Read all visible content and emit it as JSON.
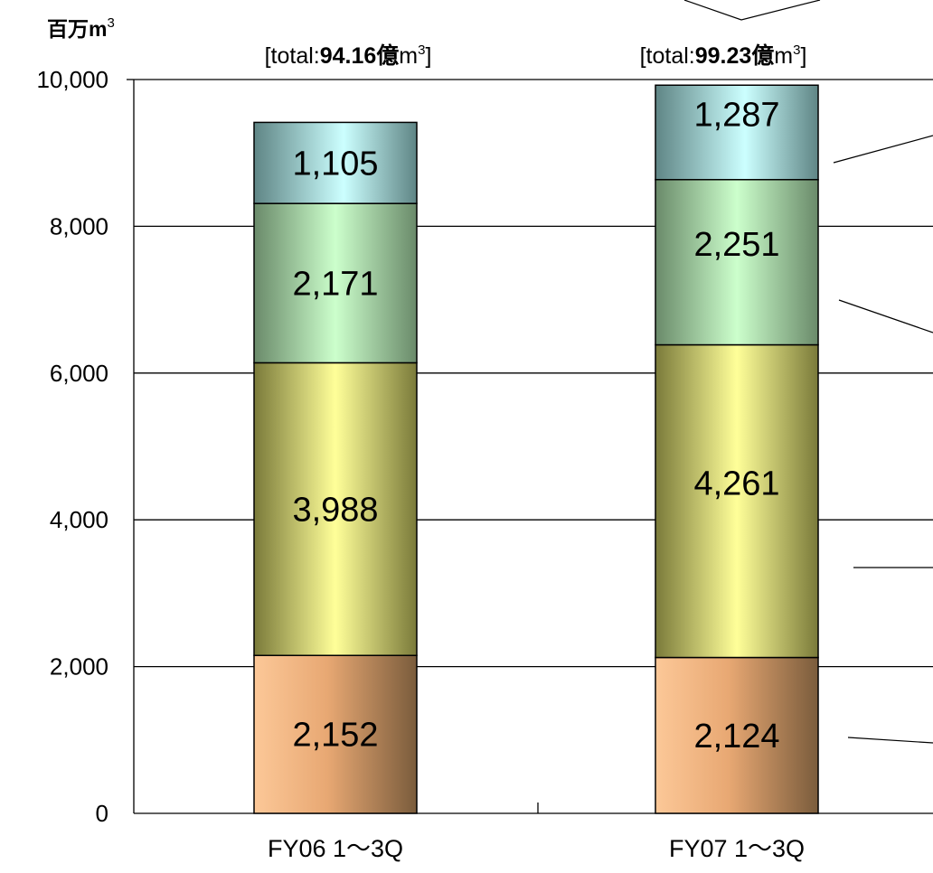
{
  "chart_data": {
    "type": "bar",
    "stacked": true,
    "title": "",
    "xlabel": "",
    "ylabel": "百万m³",
    "ylabel_parts": {
      "text": "百万m",
      "sup": "3"
    },
    "ylim": [
      0,
      10000
    ],
    "yticks": [
      0,
      2000,
      4000,
      6000,
      8000,
      10000
    ],
    "ytick_labels": [
      "0",
      "2,000",
      "4,000",
      "6,000",
      "8,000",
      "10,000"
    ],
    "grid": true,
    "categories": [
      "FY06 1～3Q",
      "FY07 1～3Q"
    ],
    "totals": [
      {
        "prefix": "[total:",
        "value": "94.16億",
        "unit": "m",
        "sup": "3",
        "suffix": "]"
      },
      {
        "prefix": "[total:",
        "value": "99.23億",
        "unit": "m",
        "sup": "3",
        "suffix": "]"
      }
    ],
    "series": [
      {
        "values": [
          2152,
          2124
        ],
        "labels": [
          "2,152",
          "2,124"
        ],
        "color": "#fcc898"
      },
      {
        "values": [
          3988,
          4261
        ],
        "labels": [
          "3,988",
          "4,261"
        ],
        "color": "#ffff99"
      },
      {
        "values": [
          2171,
          2251
        ],
        "labels": [
          "2,171",
          "2,251"
        ],
        "color": "#ccffcc"
      },
      {
        "values": [
          1105,
          1287
        ],
        "labels": [
          "1,105",
          "1,287"
        ],
        "color": "#ccffff"
      }
    ]
  }
}
